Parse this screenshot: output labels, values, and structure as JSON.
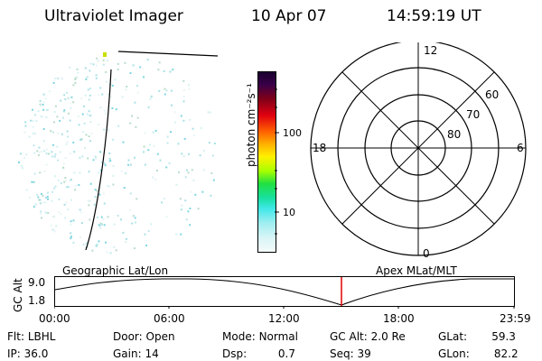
{
  "header": {
    "instrument": "Ultraviolet Imager",
    "date": "10 Apr 07",
    "time": "14:59:19 UT"
  },
  "colorbar": {
    "unit_label": "photon cm⁻²s⁻¹",
    "tick_labels": [
      "100",
      "10"
    ]
  },
  "polar_plot": {
    "mlt_labels": {
      "top": "12",
      "left": "18",
      "right": "6",
      "bottom": "0"
    },
    "lat_labels": [
      "60",
      "70",
      "80"
    ]
  },
  "timeline": {
    "left_title": "Geographic Lat/Lon",
    "right_title": "Apex MLat/MLT",
    "y_axis_label": "GC Alt",
    "y_ticks": [
      "9.0",
      "1.8"
    ],
    "x_ticks": [
      "00:00",
      "06:00",
      "12:00",
      "18:00",
      "23:59"
    ],
    "marker_color": "#e00000"
  },
  "footer": {
    "row1": [
      {
        "label": "Flt:",
        "value": "LBHL"
      },
      {
        "label": "Door:",
        "value": "Open"
      },
      {
        "label": "Mode:",
        "value": "Normal"
      },
      {
        "label": "GC Alt:",
        "value": "2.0 Re"
      },
      {
        "label": "GLat:",
        "value": "59.3"
      }
    ],
    "row2": [
      {
        "label": "IP:",
        "value": "36.0"
      },
      {
        "label": "Gain:",
        "value": "14"
      },
      {
        "label": "Dsp:",
        "value": "0.7"
      },
      {
        "label": "Seq:",
        "value": "39"
      },
      {
        "label": "GLon:",
        "value": "82.2"
      }
    ]
  }
}
